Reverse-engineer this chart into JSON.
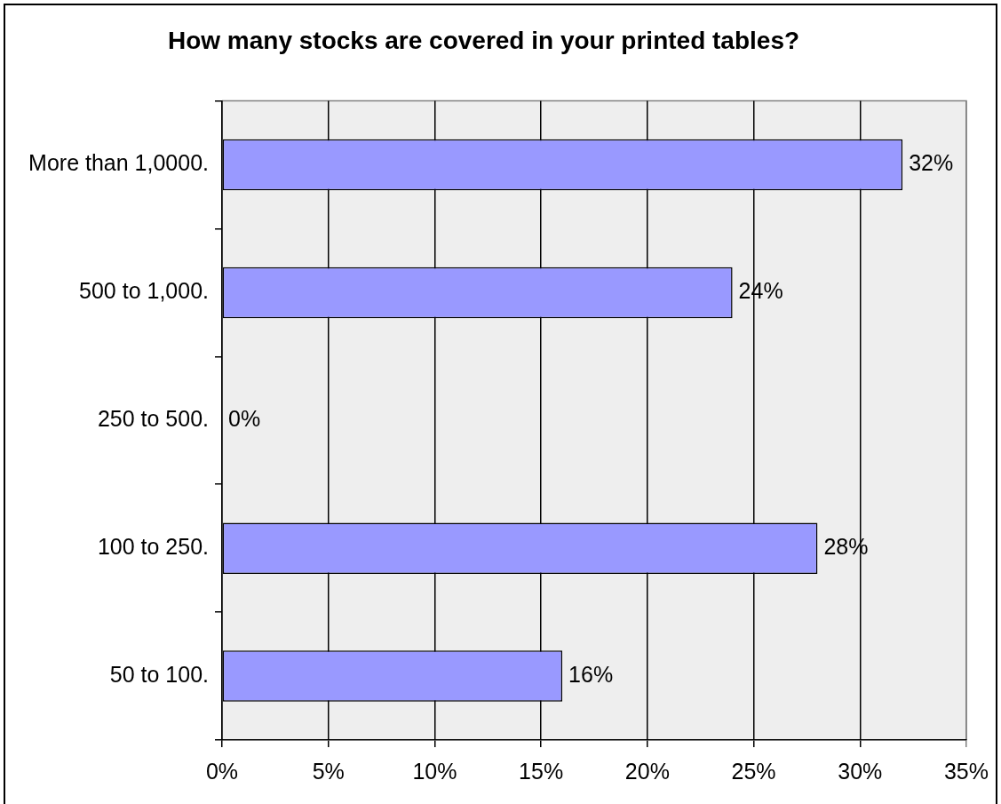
{
  "chart_data": {
    "type": "bar",
    "orientation": "horizontal",
    "title": "How many stocks are covered in your printed tables?",
    "categories": [
      "More than 1,0000.",
      "500 to 1,000.",
      "250 to 500.",
      "100 to 250.",
      "50 to 100."
    ],
    "values": [
      32,
      24,
      0,
      28,
      16
    ],
    "color": "#9999ff",
    "value_labels": [
      "32%",
      "24%",
      "0%",
      "28%",
      "16%"
    ],
    "xlim": [
      0,
      35
    ],
    "xticks": [
      {
        "value": 0,
        "label": "0%"
      },
      {
        "value": 5,
        "label": "5%"
      },
      {
        "value": 10,
        "label": "10%"
      },
      {
        "value": 15,
        "label": "15%"
      },
      {
        "value": 20,
        "label": "20%"
      },
      {
        "value": 25,
        "label": "25%"
      },
      {
        "value": 30,
        "label": "30%"
      },
      {
        "value": 35,
        "label": "35%"
      }
    ],
    "grid": "x"
  }
}
